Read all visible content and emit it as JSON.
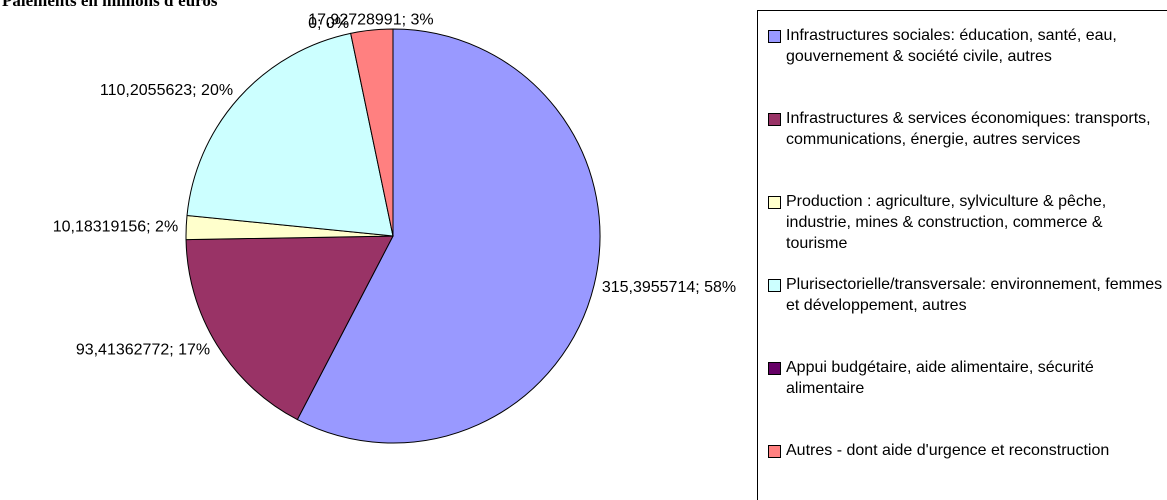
{
  "chart_data": {
    "type": "pie",
    "title": "Paiements en millions d'euros",
    "categories": [
      "Infrastructures sociales: éducation, santé, eau, gouvernement & société civile, autres",
      "Infrastructures & services économiques: transports, communications, énergie, autres services",
      "Production : agriculture, sylviculture & pêche, industrie, mines & construction, commerce & tourisme",
      "Plurisectorielle/transversale: environnement, femmes et développement, autres",
      "Appui budgétaire, aide alimentaire, sécurité alimentaire",
      "Autres - dont aide d'urgence et reconstruction"
    ],
    "values": [
      315.3955714,
      93.41362772,
      10.18319156,
      110.2055623,
      0,
      17.92728991
    ],
    "value_labels": [
      "315,3955714; 58%",
      "93,41362772; 17%",
      "10,18319156; 2%",
      "110,2055623; 20%",
      "0; 0%",
      "17,92728991; 3%"
    ],
    "colors": [
      "#9999ff",
      "#993366",
      "#ffffcc",
      "#ccffff",
      "#660066",
      "#ff8080"
    ],
    "legend": "right"
  }
}
